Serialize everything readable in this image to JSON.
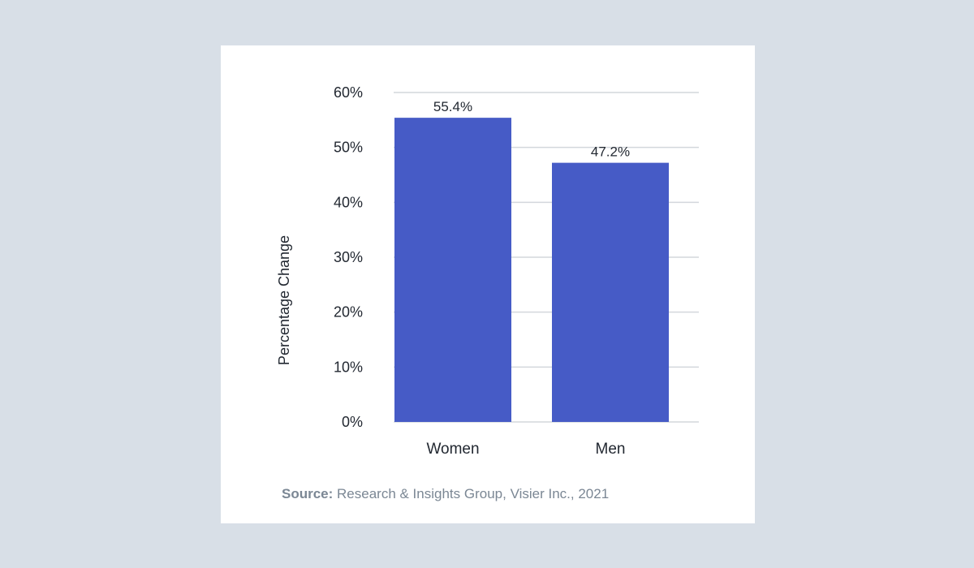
{
  "chart_data": {
    "type": "bar",
    "title": "",
    "xlabel": "",
    "ylabel": "Percentage Change",
    "categories": [
      "Women",
      "Men"
    ],
    "values": [
      55.4,
      47.2
    ],
    "data_labels": [
      "55.4%",
      "47.2%"
    ],
    "ylim": [
      0,
      60
    ],
    "yticks": [
      0,
      10,
      20,
      30,
      40,
      50,
      60
    ],
    "ytick_labels": [
      "0%",
      "10%",
      "20%",
      "30%",
      "40%",
      "50%",
      "60%"
    ],
    "grid": true,
    "legend": "none",
    "bar_color": "#465bc6",
    "grid_color": "#d3d7dc"
  },
  "source": {
    "label": "Source:",
    "text": " Research & Insights Group, Visier Inc., 2021"
  }
}
